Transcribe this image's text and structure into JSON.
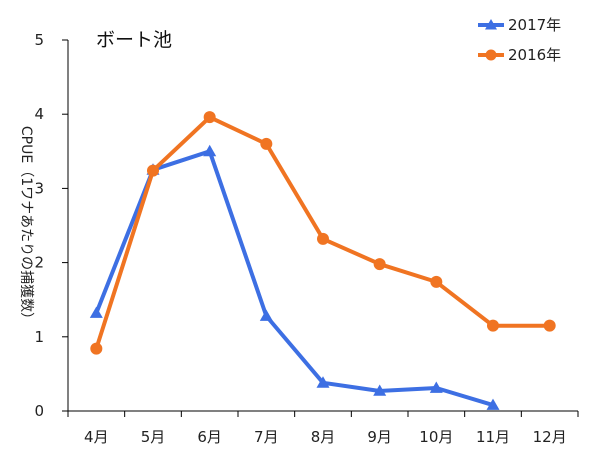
{
  "chart_data": {
    "type": "line",
    "title": "ボート池",
    "xlabel": "",
    "ylabel": "CPUE（1ワナあたりの捕獲数）",
    "categories": [
      "4月",
      "5月",
      "6月",
      "7月",
      "8月",
      "9月",
      "10月",
      "11月",
      "12月"
    ],
    "ylim": [
      0,
      5
    ],
    "yticks": [
      "0",
      "1",
      "2",
      "3",
      "4",
      "5"
    ],
    "grid": false,
    "legend_position": "top-right",
    "series": [
      {
        "name": "2017年",
        "color": "#3d6fe3",
        "marker": "triangle",
        "values": [
          1.32,
          3.25,
          3.5,
          1.28,
          0.38,
          0.27,
          0.31,
          0.08,
          null
        ]
      },
      {
        "name": "2016年",
        "color": "#f07422",
        "marker": "circle",
        "values": [
          0.84,
          3.24,
          3.96,
          3.6,
          2.32,
          1.98,
          1.74,
          1.15,
          1.15
        ]
      }
    ]
  }
}
